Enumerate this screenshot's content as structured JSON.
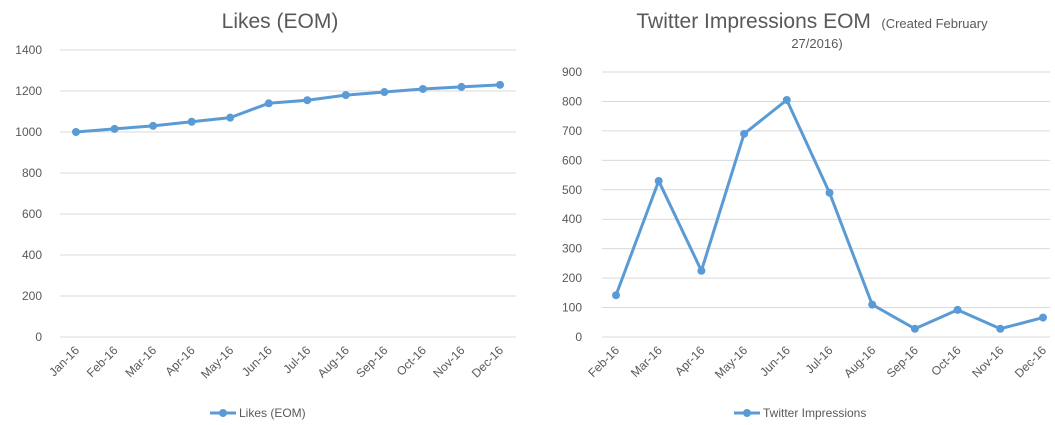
{
  "chart_data": [
    {
      "type": "line",
      "title": "Likes (EOM)",
      "categories": [
        "Jan-16",
        "Feb-16",
        "Mar-16",
        "Apr-16",
        "May-16",
        "Jun-16",
        "Jul-16",
        "Aug-16",
        "Sep-16",
        "Oct-16",
        "Nov-16",
        "Dec-16"
      ],
      "series": [
        {
          "name": "Likes (EOM)",
          "values": [
            1000,
            1015,
            1030,
            1050,
            1070,
            1140,
            1155,
            1180,
            1195,
            1210,
            1220,
            1230
          ]
        }
      ],
      "ylim": [
        0,
        1400
      ],
      "yticks": [
        "0",
        "200",
        "400",
        "600",
        "800",
        "1000",
        "1200",
        "1400"
      ],
      "xlabel": "",
      "ylabel": "",
      "grid": true,
      "legend": "bottom",
      "color": "#5b9bd5"
    },
    {
      "type": "line",
      "title": "Twitter Impressions EOM",
      "title_note": "(Created February",
      "title_note_line2": "27/2016)",
      "categories": [
        "Feb-16",
        "Mar-16",
        "Apr-16",
        "May-16",
        "Jun-16",
        "Jul-16",
        "Aug-16",
        "Sep-16",
        "Oct-16",
        "Nov-16",
        "Dec-16"
      ],
      "series": [
        {
          "name": "Twitter Impressions",
          "values": [
            142,
            530,
            225,
            690,
            805,
            490,
            110,
            28,
            92,
            28,
            66
          ]
        }
      ],
      "ylim": [
        0,
        900
      ],
      "yticks": [
        "0",
        "100",
        "200",
        "300",
        "400",
        "500",
        "600",
        "700",
        "800",
        "900"
      ],
      "xlabel": "",
      "ylabel": "",
      "grid": true,
      "legend": "bottom",
      "color": "#5b9bd5"
    }
  ]
}
